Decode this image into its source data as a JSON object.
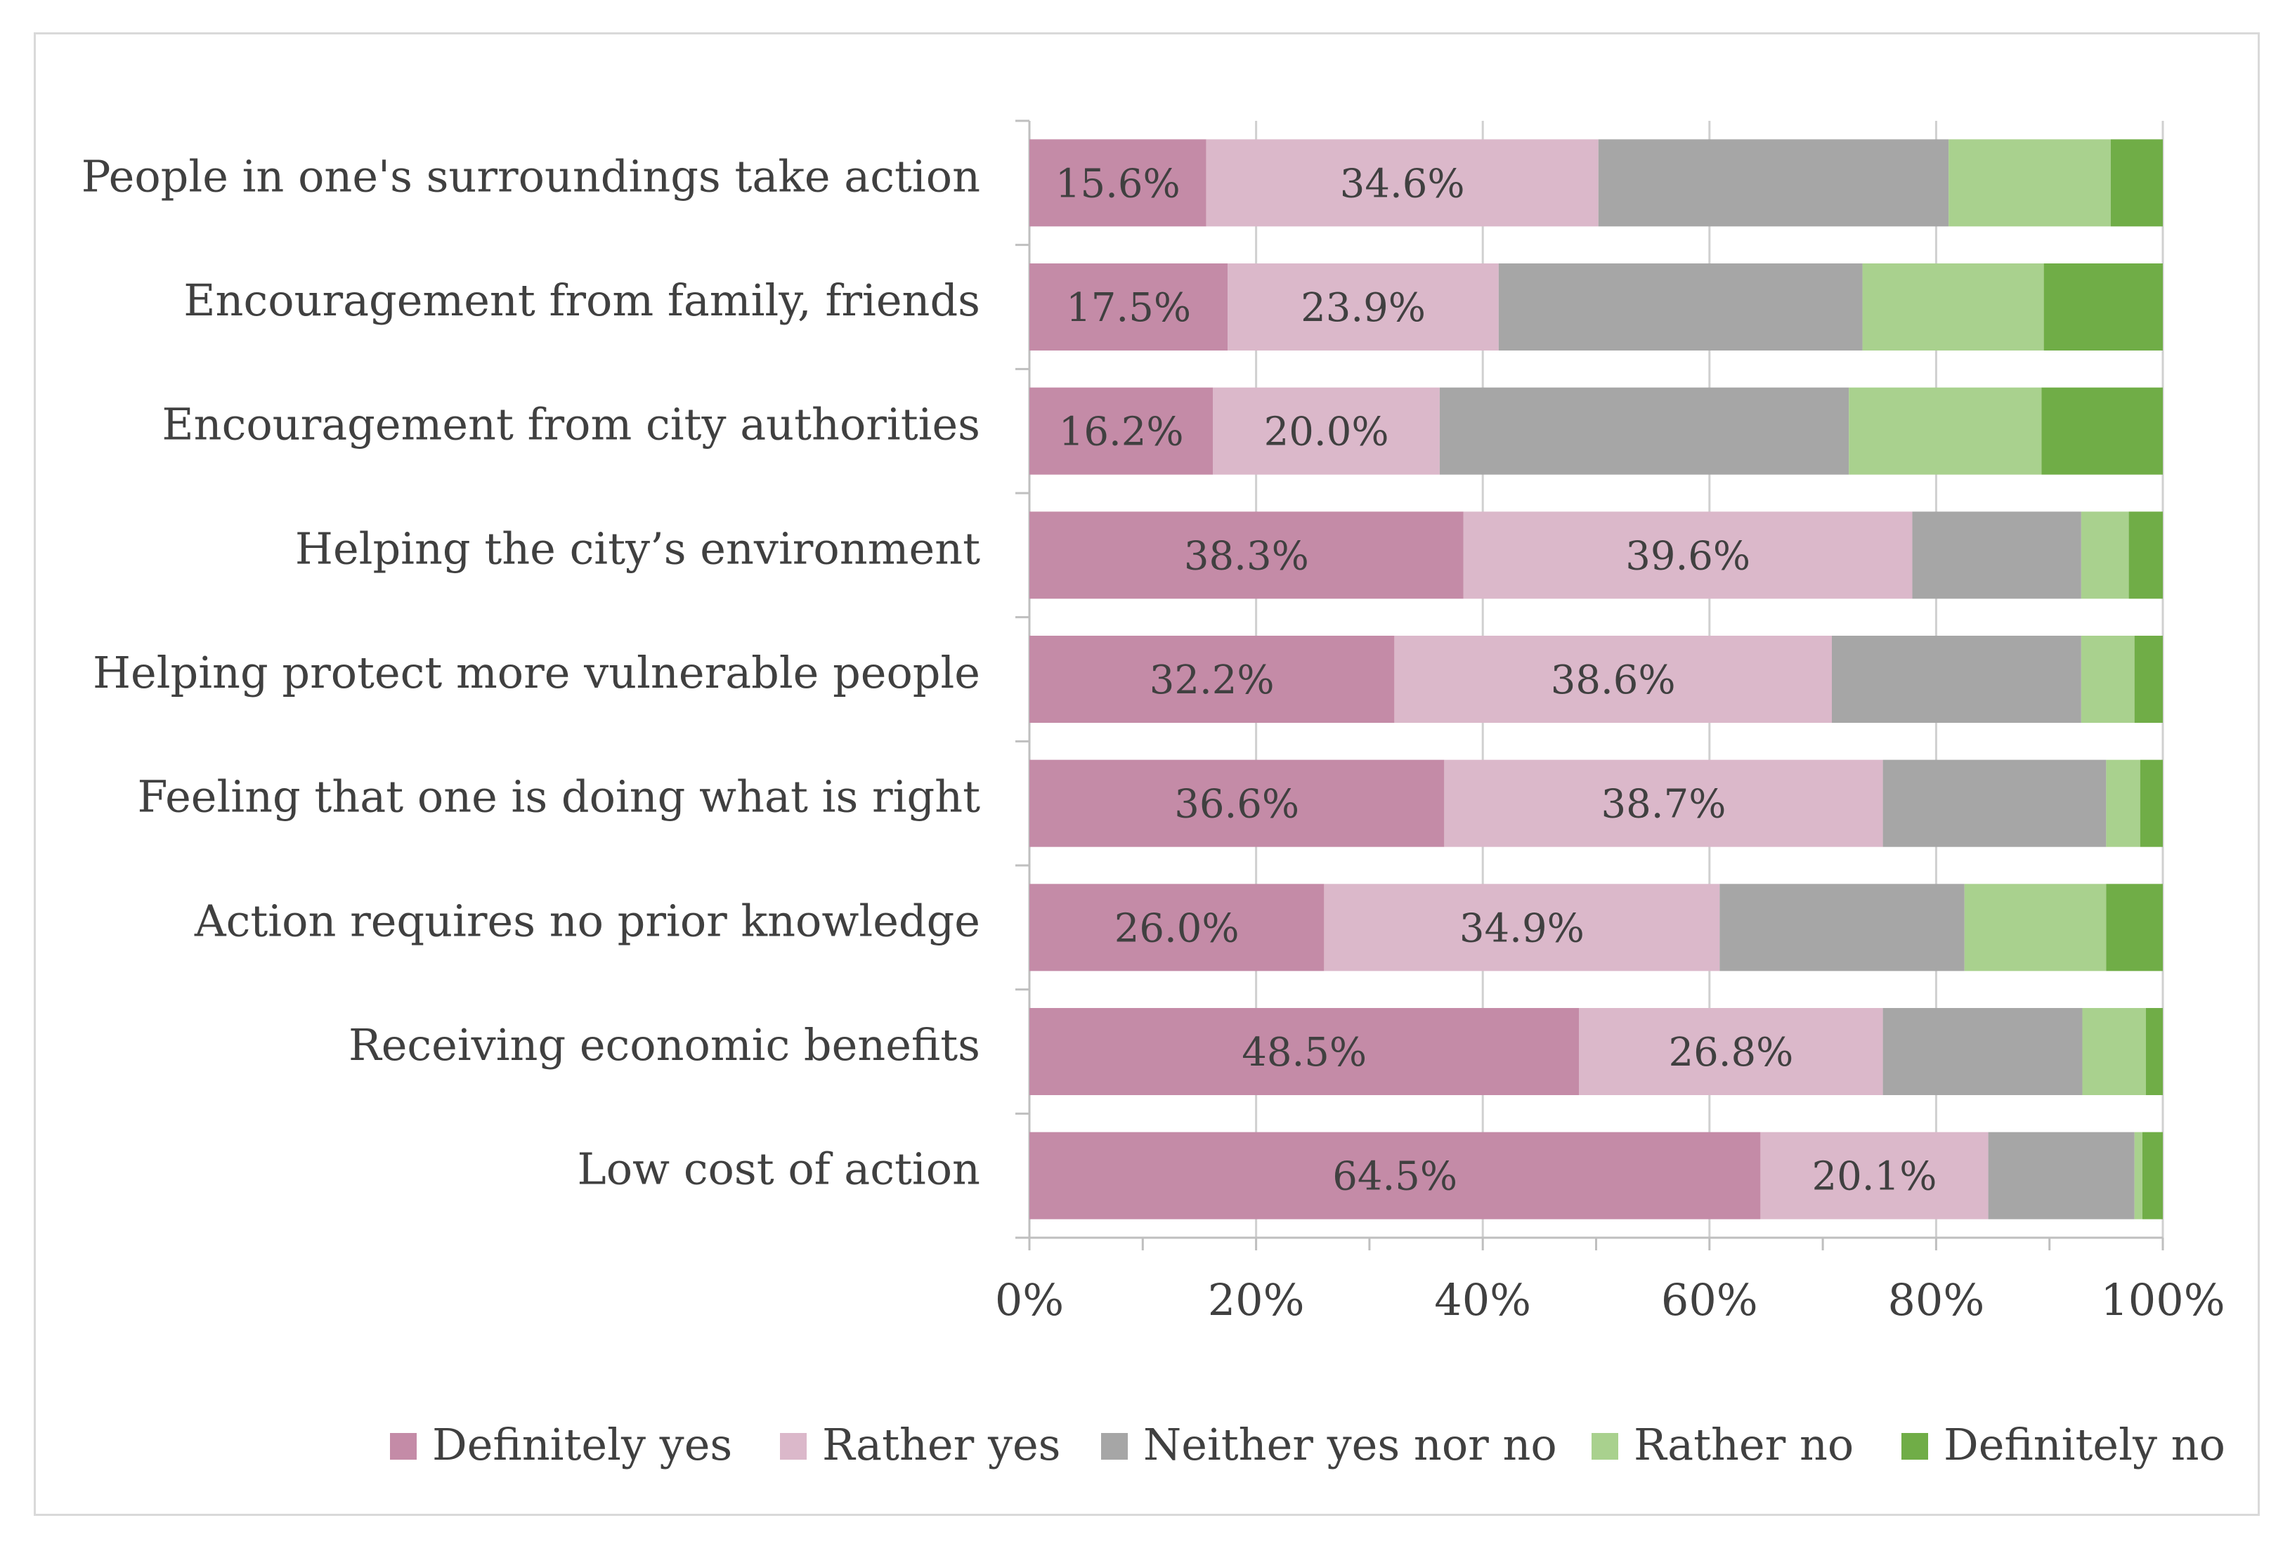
{
  "chart_data": {
    "type": "bar",
    "orientation": "horizontal",
    "stacked": true,
    "percent_stacked": true,
    "title": "",
    "xlabel": "",
    "ylabel": "",
    "xlim": [
      0,
      100
    ],
    "x_tick_labels": [
      "0%",
      "20%",
      "40%",
      "60%",
      "80%",
      "100%"
    ],
    "x_ticks": [
      0,
      20,
      40,
      60,
      80,
      100
    ],
    "grid": true,
    "legend_position": "bottom",
    "categories": [
      "People in one's surroundings take action",
      "Encouragement from family, friends",
      "Encouragement from city authorities",
      "Helping the city’s environment",
      "Helping protect more vulnerable people",
      "Feeling that one is doing what is right",
      "Action requires no prior knowledge",
      "Receiving economic benefits",
      "Low cost of action"
    ],
    "series": [
      {
        "name": "Definitely yes",
        "color": "#c48ba7",
        "values": [
          15.6,
          17.5,
          16.2,
          38.3,
          32.2,
          36.6,
          26.0,
          48.5,
          64.5
        ],
        "labels": [
          "15.6%",
          "17.5%",
          "16.2%",
          "38.3%",
          "32.2%",
          "36.6%",
          "26.0%",
          "48.5%",
          "64.5%"
        ]
      },
      {
        "name": "Rather yes",
        "color": "#dbb8ca",
        "values": [
          34.6,
          23.9,
          20.0,
          39.6,
          38.6,
          38.7,
          34.9,
          26.8,
          20.1
        ],
        "labels": [
          "34.6%",
          "23.9%",
          "20.0%",
          "39.6%",
          "38.6%",
          "38.7%",
          "34.9%",
          "26.8%",
          "20.1%"
        ]
      },
      {
        "name": "Neither yes nor no",
        "color": "#a6a6a6",
        "values": [
          30.9,
          32.1,
          36.1,
          14.9,
          22.0,
          19.7,
          21.6,
          17.6,
          12.9
        ],
        "labels": []
      },
      {
        "name": "Rather no",
        "color": "#a9d18e",
        "values": [
          14.3,
          16.0,
          17.0,
          4.2,
          4.7,
          3.0,
          12.5,
          5.6,
          0.7
        ],
        "labels": []
      },
      {
        "name": "Definitely no",
        "color": "#70ad47",
        "values": [
          4.6,
          10.5,
          10.7,
          3.0,
          2.5,
          2.0,
          5.0,
          1.5,
          1.8
        ],
        "labels": []
      }
    ]
  }
}
